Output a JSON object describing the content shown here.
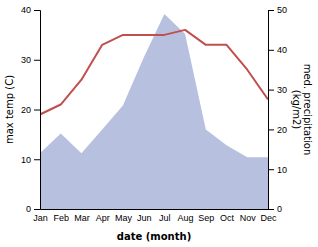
{
  "chart_data": {
    "type": "line",
    "categories": [
      "Jan",
      "Feb",
      "Mar",
      "Apr",
      "May",
      "Jun",
      "Jul",
      "Aug",
      "Sep",
      "Oct",
      "Nov",
      "Dec"
    ],
    "xlabel": "date (month)",
    "ylabel": "max temp (C)",
    "y2label": "med. precipitation\n(kg/m2)",
    "ylim": [
      0,
      40
    ],
    "yticks": [
      0,
      10,
      20,
      30,
      40
    ],
    "y2lim": [
      0,
      50
    ],
    "y2ticks": [
      0,
      10,
      20,
      30,
      40,
      50
    ],
    "series": [
      {
        "type": "area",
        "axis": "y2",
        "color": "#b8c0e0",
        "values": [
          14,
          19,
          14,
          20,
          26,
          38,
          49,
          44,
          20,
          16,
          13,
          13
        ]
      },
      {
        "type": "line",
        "color": "#c0504d",
        "values": [
          19,
          21,
          26,
          33,
          35,
          35,
          35,
          36,
          33,
          33,
          28,
          22
        ]
      }
    ]
  }
}
